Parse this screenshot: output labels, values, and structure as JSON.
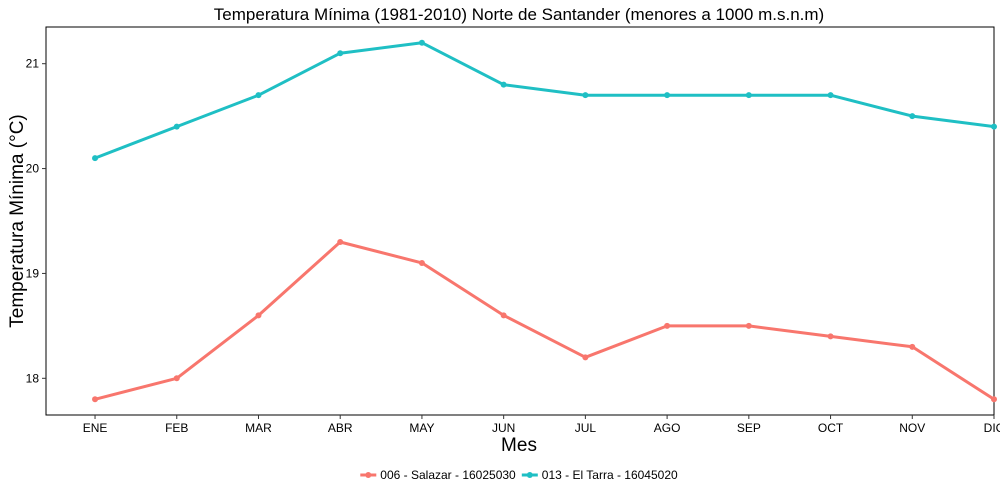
{
  "chart_data": {
    "type": "line",
    "title": "Temperatura Mínima (1981-2010) Norte de Santander (menores a 1000 m.s.n.m)",
    "xlabel": "Mes",
    "ylabel": "Temperatura Mínima (°C)",
    "categories": [
      "ENE",
      "FEB",
      "MAR",
      "ABR",
      "MAY",
      "JUN",
      "JUL",
      "AGO",
      "SEP",
      "OCT",
      "NOV",
      "DIC"
    ],
    "ylim": [
      17.65,
      21.35
    ],
    "yticks": [
      "18",
      "19",
      "20",
      "21"
    ],
    "grid": false,
    "legend_position": "bottom",
    "series": [
      {
        "name": "006 - Salazar - 16025030",
        "color": "#F8766D",
        "values": [
          17.8,
          18.0,
          18.6,
          19.3,
          19.1,
          18.6,
          18.2,
          18.5,
          18.5,
          18.4,
          18.3,
          17.8
        ]
      },
      {
        "name": "013 - El Tarra - 16045020",
        "color": "#1FBFC4",
        "values": [
          20.1,
          20.4,
          20.7,
          21.1,
          21.2,
          20.8,
          20.7,
          20.7,
          20.7,
          20.7,
          20.5,
          20.4
        ]
      }
    ]
  }
}
